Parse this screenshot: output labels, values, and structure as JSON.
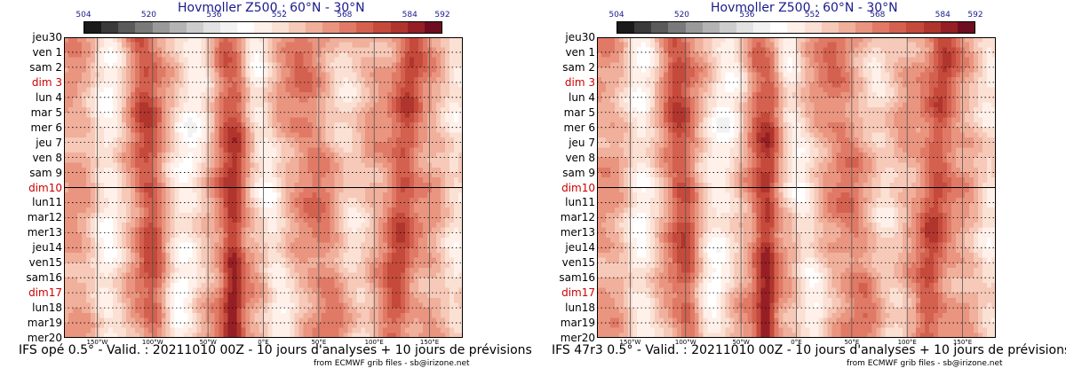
{
  "colors": {
    "colorbar": [
      "#1a1a1a",
      "#3a3a3a",
      "#5a5a5a",
      "#7a7a7a",
      "#9a9a9a",
      "#b4b4b4",
      "#cdcdcd",
      "#e2e2e2",
      "#f2f2f2",
      "#ffffff",
      "#fff0ea",
      "#fbe0d4",
      "#f6c9b8",
      "#f0b09c",
      "#e99580",
      "#e07a66",
      "#d4614f",
      "#c54a3c",
      "#b0352d",
      "#951f24",
      "#6e0d20"
    ],
    "title": "#1a1a8c",
    "sunday": "#cc0000"
  },
  "colorbar_ticks": [
    "504",
    "520",
    "536",
    "552",
    "568",
    "584",
    "592"
  ],
  "panels": [
    {
      "title": "Hovmoller Z500 : 60°N - 30°N",
      "footer": "IFS opé 0.5° - Valid. : 20211010 00Z - 10 jours d'analyses + 10 jours de prévisions",
      "credit": "from ECMWF grib files - sb@irizone.net"
    },
    {
      "title": "Hovmoller Z500 : 60°N - 30°N",
      "footer": "IFS 47r3 0.5° - Valid. : 20211010 00Z - 10 jours d'analyses + 10 jours de prévisions",
      "credit": "from ECMWF grib files - sb@irizone.net"
    }
  ],
  "chart_data": [
    {
      "type": "heatmap",
      "title": "Hovmoller Z500 : 60°N - 30°N",
      "variable": "Z500 (dam)",
      "colorbar_range": [
        504,
        592
      ],
      "colorbar_ticks": [
        504,
        520,
        536,
        552,
        568,
        584,
        592
      ],
      "y_categories": [
        "jeu30",
        "ven 1",
        "sam 2",
        "dim 3",
        "lun 4",
        "mar 5",
        "mer 6",
        "jeu 7",
        "ven 8",
        "sam 9",
        "dim10",
        "lun11",
        "mar12",
        "mer13",
        "jeu14",
        "ven15",
        "sam16",
        "dim17",
        "lun18",
        "mar19",
        "mer20"
      ],
      "sundays": [
        "dim 3",
        "dim10",
        "dim17"
      ],
      "x_ticks": [
        "150°W",
        "100°W",
        "50°W",
        "0°E",
        "50°E",
        "100°E",
        "150°E"
      ],
      "x_tick_values": [
        -150,
        -100,
        -50,
        0,
        50,
        100,
        150
      ],
      "xlim": [
        -180,
        180
      ],
      "analysis_forecast_split": "dim10",
      "grid": true
    },
    {
      "type": "heatmap",
      "title": "Hovmoller Z500 : 60°N - 30°N",
      "variable": "Z500 (dam)",
      "colorbar_range": [
        504,
        592
      ],
      "colorbar_ticks": [
        504,
        520,
        536,
        552,
        568,
        584,
        592
      ],
      "y_categories": [
        "jeu30",
        "ven 1",
        "sam 2",
        "dim 3",
        "lun 4",
        "mar 5",
        "mer 6",
        "jeu 7",
        "ven 8",
        "sam 9",
        "dim10",
        "lun11",
        "mar12",
        "mer13",
        "jeu14",
        "ven15",
        "sam16",
        "dim17",
        "lun18",
        "mar19",
        "mer20"
      ],
      "sundays": [
        "dim 3",
        "dim10",
        "dim17"
      ],
      "x_ticks": [
        "150°W",
        "100°W",
        "50°W",
        "0°E",
        "50°E",
        "100°E",
        "150°E"
      ],
      "x_tick_values": [
        -150,
        -100,
        -50,
        0,
        50,
        100,
        150
      ],
      "xlim": [
        -180,
        180
      ],
      "analysis_forecast_split": "dim10",
      "grid": true
    }
  ]
}
